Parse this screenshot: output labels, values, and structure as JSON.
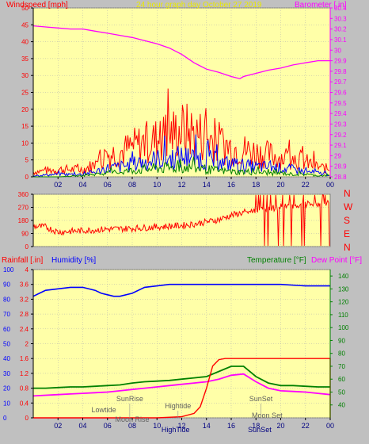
{
  "colors": {
    "background": "#c0c0c0",
    "plot_bg": "#ffffa8",
    "red": "#ff0000",
    "blue": "#0000ff",
    "green": "#008000",
    "magenta": "#ff00ff",
    "gold": "#e8e800",
    "dark_red": "#b00000",
    "grid": "#b0b0b0"
  },
  "chart_data": [
    {
      "id": "wind_baro",
      "type": "line",
      "title": "24 hour graph day   October 27 2019",
      "left_axis_label": "Windspeed [mph]",
      "right_axis_label": "Barometer [.in]",
      "left_ticks": [
        "0",
        "5",
        "10",
        "15",
        "20",
        "25",
        "30",
        "35",
        "40",
        "45",
        "50"
      ],
      "right_ticks": [
        "28.8",
        "28.9",
        "29",
        "29.1",
        "29.2",
        "29.3",
        "29.4",
        "29.5",
        "29.6",
        "29.7",
        "29.8",
        "29.9",
        "30",
        "30.1",
        "30.2",
        "30.3",
        "30.4"
      ],
      "x_ticks": [
        "02",
        "04",
        "06",
        "08",
        "10",
        "12",
        "14",
        "16",
        "18",
        "20",
        "22",
        "00"
      ],
      "ylim_left": [
        0,
        50
      ],
      "ylim_right": [
        28.8,
        30.4
      ],
      "barometer": {
        "name": "Barometer",
        "x": [
          0,
          1,
          2,
          3,
          4,
          5,
          6,
          7,
          8,
          9,
          10,
          11,
          12,
          13,
          14,
          15,
          16,
          16.7,
          17,
          18,
          19,
          20,
          21,
          22,
          23,
          24
        ],
        "values": [
          30.23,
          30.22,
          30.21,
          30.2,
          30.2,
          30.18,
          30.16,
          30.14,
          30.12,
          30.09,
          30.06,
          30.02,
          29.96,
          29.88,
          29.82,
          29.79,
          29.75,
          29.73,
          29.75,
          29.78,
          29.81,
          29.83,
          29.86,
          29.88,
          29.9,
          29.9
        ]
      },
      "wind_series": [
        {
          "name": "Gust",
          "color": "red",
          "envelope_x": [
            0,
            2,
            4,
            5,
            6,
            7,
            8,
            9,
            10,
            11,
            12,
            13,
            14,
            15,
            16,
            17,
            18,
            19,
            20,
            21,
            22,
            23,
            24
          ],
          "envelope": [
            2,
            3,
            3,
            5,
            9,
            10,
            12,
            14,
            15,
            17,
            19,
            18,
            16,
            14,
            12,
            11,
            10,
            9,
            8,
            8,
            6,
            4,
            3
          ]
        },
        {
          "name": "Average",
          "color": "blue",
          "envelope_x": [
            0,
            2,
            4,
            5,
            6,
            7,
            8,
            9,
            10,
            11,
            12,
            13,
            14,
            15,
            16,
            17,
            18,
            19,
            20,
            21,
            22,
            23,
            24
          ],
          "envelope": [
            0.5,
            1,
            1,
            2,
            3.5,
            4,
            5,
            6,
            7,
            7.5,
            8,
            7.5,
            7,
            6,
            5,
            4.5,
            4,
            4,
            3.5,
            3,
            2,
            1.5,
            1
          ]
        },
        {
          "name": "Wind",
          "color": "green",
          "envelope_x": [
            0,
            2,
            4,
            5,
            6,
            7,
            8,
            9,
            10,
            11,
            12,
            13,
            14,
            15,
            16,
            17,
            18,
            19,
            20,
            21,
            22,
            23,
            24
          ],
          "envelope": [
            0,
            0,
            0.5,
            1,
            1.5,
            2,
            2.5,
            3,
            3.5,
            3.5,
            4,
            3.5,
            3,
            2.5,
            2,
            2,
            2,
            1.5,
            1.5,
            1,
            1,
            0.5,
            0.5
          ]
        }
      ]
    },
    {
      "id": "direction",
      "type": "line",
      "left_ticks": [
        "0",
        "90",
        "180",
        "270",
        "360"
      ],
      "ylim": [
        0,
        360
      ],
      "right_labels": [
        "N",
        "W",
        "S",
        "E",
        "N"
      ],
      "x_ticks": [
        "02",
        "04",
        "06",
        "08",
        "10",
        "12",
        "14",
        "16",
        "18",
        "20",
        "22",
        "00"
      ],
      "series": [
        {
          "name": "Wind Direction",
          "color": "red",
          "x": [
            0,
            1,
            2,
            4,
            6,
            8,
            10,
            12,
            13,
            14,
            15,
            16,
            17,
            18,
            20,
            22,
            24
          ],
          "values": [
            140,
            135,
            100,
            110,
            120,
            125,
            135,
            145,
            155,
            170,
            185,
            215,
            235,
            250,
            270,
            290,
            300
          ]
        }
      ]
    },
    {
      "id": "rain_hum_temp",
      "type": "line",
      "left_axis_label_1": "Rainfall [.in]",
      "left_axis_label_2": "Humidity [%]",
      "right_axis_label_1": "Temperature [°F]",
      "right_axis_label_2": "Dew Point [°F]",
      "humidity_ticks": [
        "0",
        "10",
        "20",
        "30",
        "40",
        "50",
        "60",
        "70",
        "80",
        "90",
        "100"
      ],
      "rain_ticks": [
        "0",
        "0.4",
        "0.8",
        "1.2",
        "1.6",
        "2",
        "2.4",
        "2.8",
        "3.2",
        "3.6",
        "4"
      ],
      "temp_ticks": [
        "40",
        "50",
        "60",
        "70",
        "80",
        "90",
        "100",
        "110",
        "120",
        "130",
        "140"
      ],
      "x_ticks": [
        "02",
        "04",
        "06",
        "08",
        "10",
        "12",
        "14",
        "16",
        "18",
        "20",
        "22",
        "00"
      ],
      "ylim_humidity": [
        0,
        100
      ],
      "ylim_rain": [
        0,
        4
      ],
      "ylim_temp": [
        30,
        145
      ],
      "annotations": [
        "Lowtide",
        "SunRise",
        "Moon Rise",
        "Hightide",
        "HighTide",
        "SunSet",
        "Moon Set",
        "SunSet"
      ],
      "series": [
        {
          "name": "Humidity",
          "color": "blue",
          "x": [
            0,
            0.5,
            1,
            2,
            3,
            4,
            5,
            5.5,
            6,
            6.5,
            7,
            8,
            9,
            10,
            11,
            12,
            14,
            16,
            18,
            20,
            22,
            24
          ],
          "values": [
            82,
            84,
            86,
            87,
            88,
            88,
            86,
            84,
            83,
            82,
            82,
            84,
            88,
            89,
            90,
            90,
            90,
            90,
            90,
            90,
            89,
            89
          ]
        },
        {
          "name": "Temperature",
          "color": "green",
          "x": [
            0,
            1,
            2,
            3,
            4,
            5,
            6,
            7,
            8,
            9,
            10,
            11,
            12,
            13,
            14,
            15,
            16,
            17,
            18,
            19,
            20,
            21,
            22,
            23,
            24
          ],
          "values": [
            53,
            53,
            53.5,
            54,
            54,
            54.5,
            55,
            55.5,
            57,
            58,
            58.5,
            59,
            60,
            61,
            62,
            66,
            70,
            70,
            62,
            57,
            55,
            55,
            54.5,
            54,
            54
          ]
        },
        {
          "name": "Dew Point",
          "color": "magenta",
          "x": [
            0,
            1,
            2,
            3,
            4,
            5,
            6,
            7,
            8,
            9,
            10,
            11,
            12,
            13,
            14,
            15,
            16,
            17,
            18,
            19,
            20,
            21,
            22,
            23,
            24
          ],
          "values": [
            47,
            47.5,
            48,
            48.5,
            49,
            49.5,
            50,
            51,
            52,
            53,
            54,
            55,
            56,
            57,
            58,
            60,
            63,
            64,
            58,
            53,
            51,
            50.5,
            50,
            49,
            48
          ]
        },
        {
          "name": "Rainfall",
          "color": "red",
          "x": [
            0,
            8,
            10,
            12,
            13,
            13.5,
            14,
            14.5,
            15,
            15.5,
            16,
            20,
            24,
            24
          ],
          "values": [
            0,
            0,
            0,
            0.03,
            0.12,
            0.3,
            0.8,
            1.4,
            1.57,
            1.6,
            1.6,
            1.6,
            1.6,
            0
          ]
        }
      ]
    }
  ]
}
